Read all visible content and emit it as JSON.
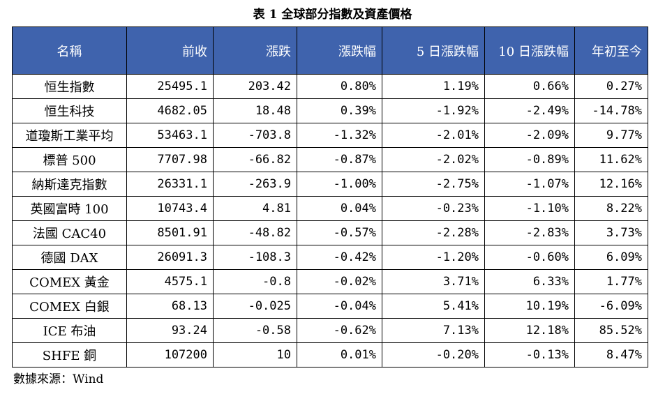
{
  "title": "表 1 全球部分指數及資產價格",
  "table": {
    "headers": [
      "名稱",
      "前收",
      "漲跌",
      "漲跌幅",
      "5 日漲跌幅",
      "10 日漲跌幅",
      "年初至今"
    ],
    "rows": [
      [
        "恒生指數",
        "25495.1",
        "203.42",
        "0.80%",
        "1.19%",
        "0.66%",
        "0.27%"
      ],
      [
        "恒生科技",
        "4682.05",
        "18.48",
        "0.39%",
        "-1.92%",
        "-2.49%",
        "-14.78%"
      ],
      [
        "道瓊斯工業平均",
        "53463.1",
        "-703.8",
        "-1.32%",
        "-2.01%",
        "-2.09%",
        "9.77%"
      ],
      [
        "標普 500",
        "7707.98",
        "-66.82",
        "-0.87%",
        "-2.02%",
        "-0.89%",
        "11.62%"
      ],
      [
        "納斯達克指數",
        "26331.1",
        "-263.9",
        "-1.00%",
        "-2.75%",
        "-1.07%",
        "12.16%"
      ],
      [
        "英國富時 100",
        "10743.4",
        "4.81",
        "0.04%",
        "-0.23%",
        "-1.10%",
        "8.22%"
      ],
      [
        "法國 CAC40",
        "8501.91",
        "-48.82",
        "-0.57%",
        "-2.28%",
        "-2.83%",
        "3.73%"
      ],
      [
        "德國 DAX",
        "26091.3",
        "-108.3",
        "-0.42%",
        "-1.20%",
        "-0.60%",
        "6.09%"
      ],
      [
        "COMEX 黃金",
        "4575.1",
        "-0.8",
        "-0.02%",
        "3.71%",
        "6.33%",
        "1.77%"
      ],
      [
        "COMEX 白銀",
        "68.13",
        "-0.025",
        "-0.04%",
        "5.41%",
        "10.19%",
        "-6.09%"
      ],
      [
        "ICE 布油",
        "93.24",
        "-0.58",
        "-0.62%",
        "7.13%",
        "12.18%",
        "85.52%"
      ],
      [
        "SHFE 銅",
        "107200",
        "10",
        "0.01%",
        "-0.20%",
        "-0.13%",
        "8.47%"
      ]
    ]
  },
  "source": "數據來源：Wind",
  "colors": {
    "header_bg": "#3f63ad",
    "header_text": "#ffffff",
    "border": "#000000"
  }
}
